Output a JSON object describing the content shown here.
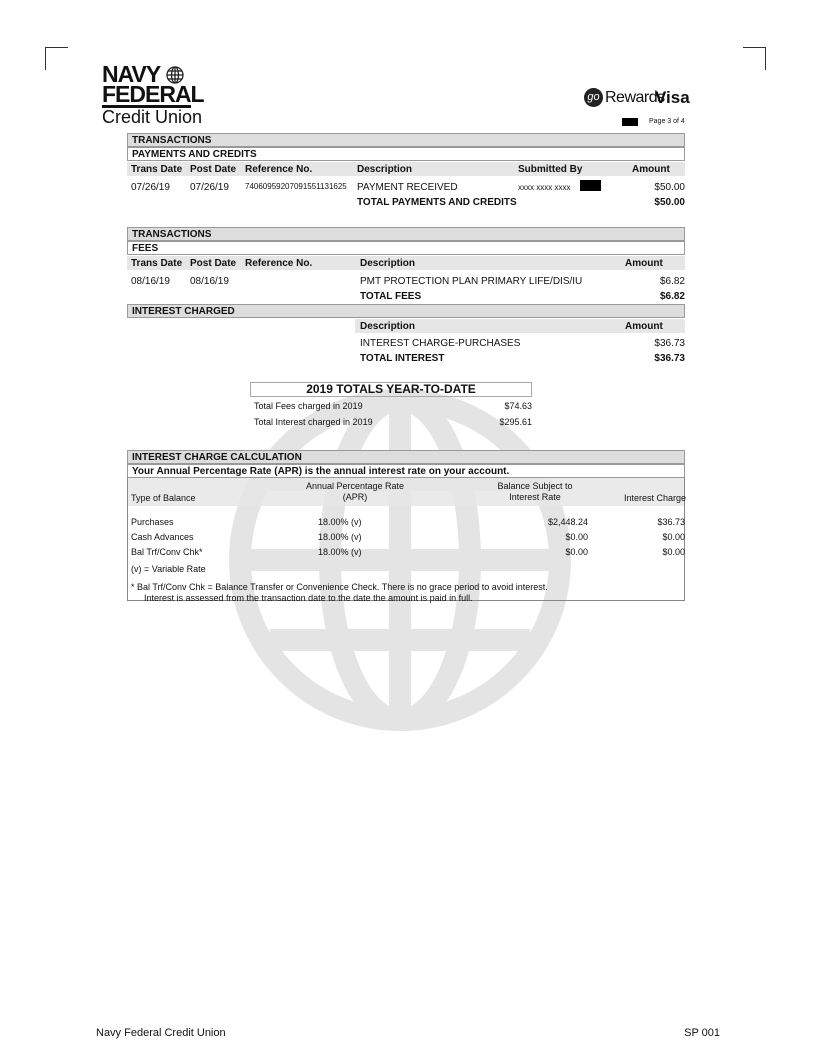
{
  "logo": {
    "line1": "NAVY",
    "line2": "FEDERAL",
    "line3": "Credit Union"
  },
  "card": {
    "go": "go",
    "rewards": "Rewards",
    "visa": "Visa"
  },
  "page_label": "Page 3 of 4",
  "payments": {
    "section": "TRANSACTIONS",
    "subsection": "PAYMENTS AND CREDITS",
    "columns": [
      "Trans Date",
      "Post Date",
      "Reference No.",
      "Description",
      "Submitted By",
      "Amount"
    ],
    "rows": [
      {
        "trans": "07/26/19",
        "post": "07/26/19",
        "ref": "74060959207091551131625",
        "desc": "PAYMENT RECEIVED",
        "by": "xxxx xxxx xxxx",
        "amount": "$50.00"
      }
    ],
    "total_label": "TOTAL PAYMENTS AND CREDITS",
    "total": "$50.00"
  },
  "fees": {
    "section": "TRANSACTIONS",
    "subsection": "FEES",
    "columns": [
      "Trans Date",
      "Post Date",
      "Reference No.",
      "Description",
      "Amount"
    ],
    "rows": [
      {
        "trans": "08/16/19",
        "post": "08/16/19",
        "desc": "PMT PROTECTION PLAN PRIMARY LIFE/DIS/IU",
        "amount": "$6.82"
      }
    ],
    "total_label": "TOTAL FEES",
    "total": "$6.82"
  },
  "interest": {
    "section": "INTEREST CHARGED",
    "columns": [
      "Description",
      "Amount"
    ],
    "rows": [
      {
        "desc": "INTEREST CHARGE-PURCHASES",
        "amount": "$36.73"
      }
    ],
    "total_label": "TOTAL INTEREST",
    "total": "$36.73"
  },
  "ytd": {
    "title": "2019 TOTALS YEAR-TO-DATE",
    "rows": [
      {
        "label": "Total Fees charged in 2019",
        "value": "$74.63"
      },
      {
        "label": "Total Interest charged in 2019",
        "value": "$295.61"
      }
    ]
  },
  "calc": {
    "title": "INTEREST CHARGE CALCULATION",
    "subtitle": "Your Annual Percentage Rate (APR) is the annual interest rate on your account.",
    "col_type": "Type of Balance",
    "col_apr1": "Annual Percentage Rate",
    "col_apr2": "(APR)",
    "col_bal1": "Balance Subject to",
    "col_bal2": "Interest Rate",
    "col_charge": "Interest Charge",
    "rows": [
      {
        "type": "Purchases",
        "apr": "18.00% (v)",
        "balance": "$2,448.24",
        "charge": "$36.73"
      },
      {
        "type": "Cash Advances",
        "apr": "18.00% (v)",
        "balance": "$0.00",
        "charge": "$0.00"
      },
      {
        "type": "Bal Trf/Conv Chk*",
        "apr": "18.00% (v)",
        "balance": "$0.00",
        "charge": "$0.00"
      }
    ],
    "variable_note": "(v) = Variable Rate",
    "footnote1": "*  Bal Trf/Conv Chk = Balance Transfer or Convenience Check. There is no grace period to avoid interest.",
    "footnote2": "Interest is assessed from the transaction date to the date the amount is paid in full."
  },
  "footer": {
    "left": "Navy Federal Credit Union",
    "right": "SP 001"
  }
}
